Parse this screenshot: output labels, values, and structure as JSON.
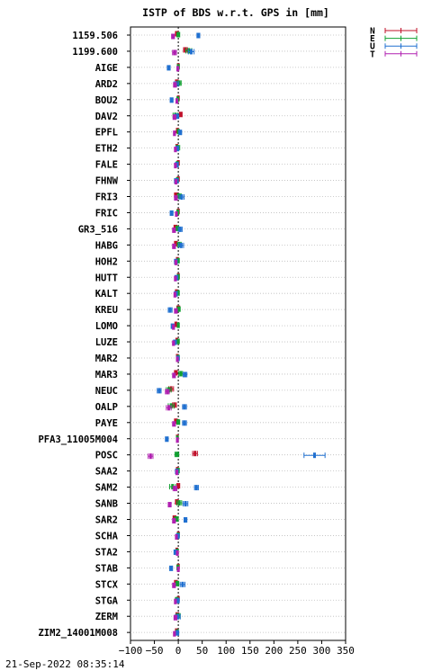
{
  "chart_data": {
    "type": "errorbar",
    "title": "ISTP of BDS w.r.t. GPS in [mm]",
    "xlim": [
      -100,
      350
    ],
    "xticks": [
      "−100",
      "−50",
      "0",
      "50",
      "100",
      "150",
      "200",
      "250",
      "300",
      "350"
    ],
    "xtick_values": [
      -100,
      -50,
      0,
      50,
      100,
      150,
      200,
      250,
      300,
      350
    ],
    "stations": [
      "1159.506",
      "1199.600",
      "AIGE",
      "ARD2",
      "BOU2",
      "DAV2",
      "EPFL",
      "ETH2",
      "FALE",
      "FHNW",
      "FRI3",
      "FRIC",
      "GR3_516",
      "HABG",
      "HOH2",
      "HUTT",
      "KALT",
      "KREU",
      "LOMO",
      "LUZE",
      "MAR2",
      "MAR3",
      "NEUC",
      "OALP",
      "PAYE",
      "PFA3_11005M004",
      "POSC",
      "SAA2",
      "SAM2",
      "SANB",
      "SAR2",
      "SCHA",
      "STA2",
      "STAB",
      "STCX",
      "STGA",
      "ZERM",
      "ZIM2_14001M008"
    ],
    "series": [
      {
        "name": "N",
        "color": "#c0102a",
        "values": [
          -3,
          15,
          0,
          -3,
          0,
          5,
          -2,
          -3,
          0,
          0,
          -5,
          0,
          -6,
          -5,
          -2,
          0,
          -4,
          0,
          -5,
          -3,
          -2,
          -5,
          -15,
          -8,
          -5,
          -2,
          35,
          -2,
          0,
          -3,
          -8,
          0,
          -3,
          0,
          -5,
          0,
          -2,
          -4
        ],
        "errors": [
          3,
          4,
          2,
          3,
          2,
          3,
          2,
          2,
          2,
          2,
          3,
          2,
          3,
          3,
          2,
          2,
          2,
          3,
          2,
          2,
          2,
          3,
          5,
          4,
          3,
          2,
          5,
          2,
          3,
          3,
          3,
          2,
          2,
          2,
          3,
          2,
          3,
          2
        ]
      },
      {
        "name": "E",
        "color": "#10a030",
        "values": [
          0,
          22,
          0,
          2,
          -1,
          -6,
          0,
          -1,
          -2,
          -2,
          2,
          -1,
          -2,
          2,
          0,
          0,
          0,
          1,
          0,
          0,
          0,
          5,
          -20,
          -15,
          0,
          -2,
          -3,
          0,
          -12,
          2,
          -4,
          0,
          -2,
          -1,
          -2,
          -3,
          0,
          -2
        ],
        "errors": [
          3,
          6,
          2,
          4,
          2,
          5,
          2,
          4,
          2,
          2,
          4,
          2,
          3,
          4,
          2,
          2,
          2,
          3,
          2,
          2,
          2,
          4,
          5,
          6,
          3,
          2,
          4,
          2,
          6,
          5,
          4,
          2,
          2,
          2,
          3,
          3,
          4,
          2
        ]
      },
      {
        "name": "U",
        "color": "#2070d0",
        "values": [
          42,
          27,
          -20,
          -4,
          -14,
          -3,
          4,
          -2,
          -3,
          -4,
          7,
          -14,
          4,
          6,
          -5,
          -4,
          -5,
          -17,
          -12,
          -7,
          -1,
          14,
          -40,
          13,
          13,
          -24,
          285,
          -3,
          38,
          15,
          15,
          -1,
          -6,
          -15,
          9,
          -1,
          -1,
          -2
        ],
        "errors": [
          3,
          6,
          3,
          5,
          3,
          4,
          3,
          3,
          3,
          4,
          5,
          3,
          4,
          5,
          3,
          3,
          3,
          4,
          3,
          3,
          3,
          4,
          4,
          4,
          4,
          3,
          22,
          3,
          4,
          5,
          3,
          3,
          3,
          3,
          5,
          3,
          5,
          3
        ]
      },
      {
        "name": "T",
        "color": "#b020b0",
        "values": [
          -11,
          -8,
          -1,
          -7,
          -3,
          -8,
          -8,
          -6,
          -6,
          -5,
          -5,
          -4,
          -9,
          -9,
          -5,
          -6,
          -7,
          -5,
          -10,
          -10,
          -2,
          -9,
          -23,
          -20,
          -9,
          -2,
          -58,
          -3,
          -7,
          -18,
          -9,
          -4,
          -2,
          0,
          -9,
          -6,
          -6,
          -8
        ],
        "errors": [
          3,
          4,
          2,
          3,
          2,
          3,
          2,
          2,
          2,
          2,
          3,
          2,
          3,
          3,
          2,
          2,
          2,
          3,
          2,
          2,
          2,
          3,
          4,
          5,
          3,
          2,
          5,
          2,
          4,
          3,
          3,
          2,
          2,
          2,
          3,
          2,
          3,
          2
        ]
      }
    ]
  },
  "footer": {
    "timestamp": "21-Sep-2022 08:35:14"
  }
}
